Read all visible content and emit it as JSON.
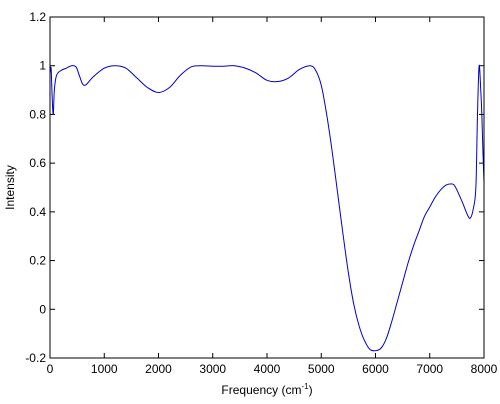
{
  "chart_data": {
    "type": "line",
    "title": "",
    "xlabel": "Frequency (cm",
    "xlabel_sup": "-1",
    "xlabel_close": ")",
    "ylabel": "Intensity",
    "xlim": [
      0,
      8000
    ],
    "ylim": [
      -0.2,
      1.2
    ],
    "xticks": [
      0,
      1000,
      2000,
      3000,
      4000,
      5000,
      6000,
      7000,
      8000
    ],
    "xtick_labels": [
      "0",
      "1000",
      "2000",
      "3000",
      "4000",
      "5000",
      "6000",
      "7000",
      "8000"
    ],
    "yticks": [
      -0.2,
      0,
      0.2,
      0.4,
      0.6,
      0.8,
      1,
      1.2
    ],
    "ytick_labels": [
      "-0.2",
      "0",
      "0.2",
      "0.4",
      "0.6",
      "0.8",
      "1",
      "1.2"
    ],
    "grid": false,
    "line_color": "#0000cc",
    "series": [
      {
        "x": [
          0,
          20,
          40,
          60,
          80,
          120,
          200,
          300,
          400,
          480,
          540,
          600,
          650,
          700,
          800,
          1000,
          1200,
          1400,
          1600,
          1800,
          2000,
          2200,
          2400,
          2600,
          2800,
          3000,
          3200,
          3400,
          3600,
          3800,
          4000,
          4200,
          4400,
          4600,
          4800,
          4900,
          5000,
          5100,
          5200,
          5300,
          5400,
          5500,
          5600,
          5700,
          5800,
          5900,
          6000,
          6100,
          6200,
          6300,
          6400,
          6500,
          6600,
          6700,
          6800,
          6900,
          7000,
          7100,
          7200,
          7300,
          7400,
          7450,
          7500,
          7600,
          7700,
          7750,
          7800,
          7850,
          7880,
          7910,
          7940,
          7960,
          7980,
          8000
        ],
        "y": [
          0.97,
          0.99,
          0.87,
          0.8,
          0.9,
          0.96,
          0.98,
          0.99,
          1.0,
          0.995,
          0.96,
          0.925,
          0.92,
          0.93,
          0.955,
          0.99,
          1.0,
          0.99,
          0.95,
          0.91,
          0.89,
          0.91,
          0.96,
          0.995,
          1.0,
          0.998,
          0.998,
          1.0,
          0.99,
          0.97,
          0.94,
          0.935,
          0.95,
          0.985,
          1.0,
          0.98,
          0.92,
          0.8,
          0.65,
          0.48,
          0.31,
          0.15,
          0.02,
          -0.07,
          -0.13,
          -0.165,
          -0.17,
          -0.16,
          -0.12,
          -0.05,
          0.03,
          0.11,
          0.19,
          0.26,
          0.32,
          0.38,
          0.42,
          0.46,
          0.49,
          0.51,
          0.515,
          0.51,
          0.49,
          0.44,
          0.385,
          0.375,
          0.41,
          0.5,
          0.8,
          1.0,
          0.9,
          0.8,
          0.65,
          0.52
        ]
      }
    ]
  }
}
